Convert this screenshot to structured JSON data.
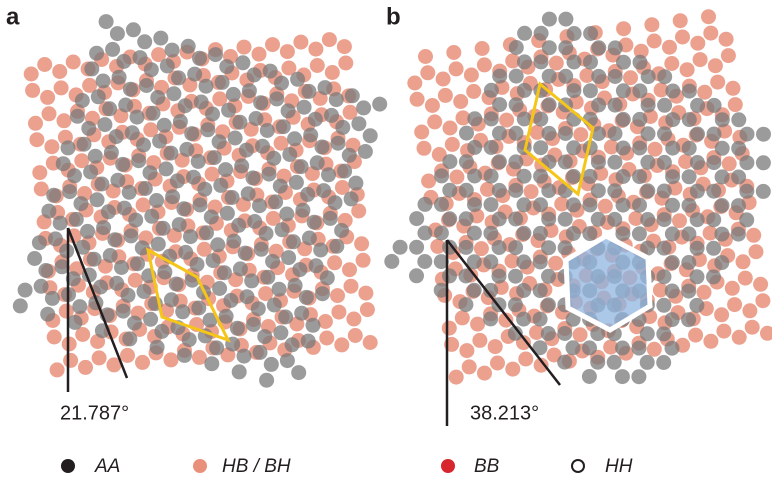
{
  "panels": [
    {
      "label": "a",
      "angle": "21.787°"
    },
    {
      "label": "b",
      "angle": "38.213°"
    }
  ],
  "legend": [
    "AA",
    "HB / BH",
    "BB",
    "HH"
  ]
}
